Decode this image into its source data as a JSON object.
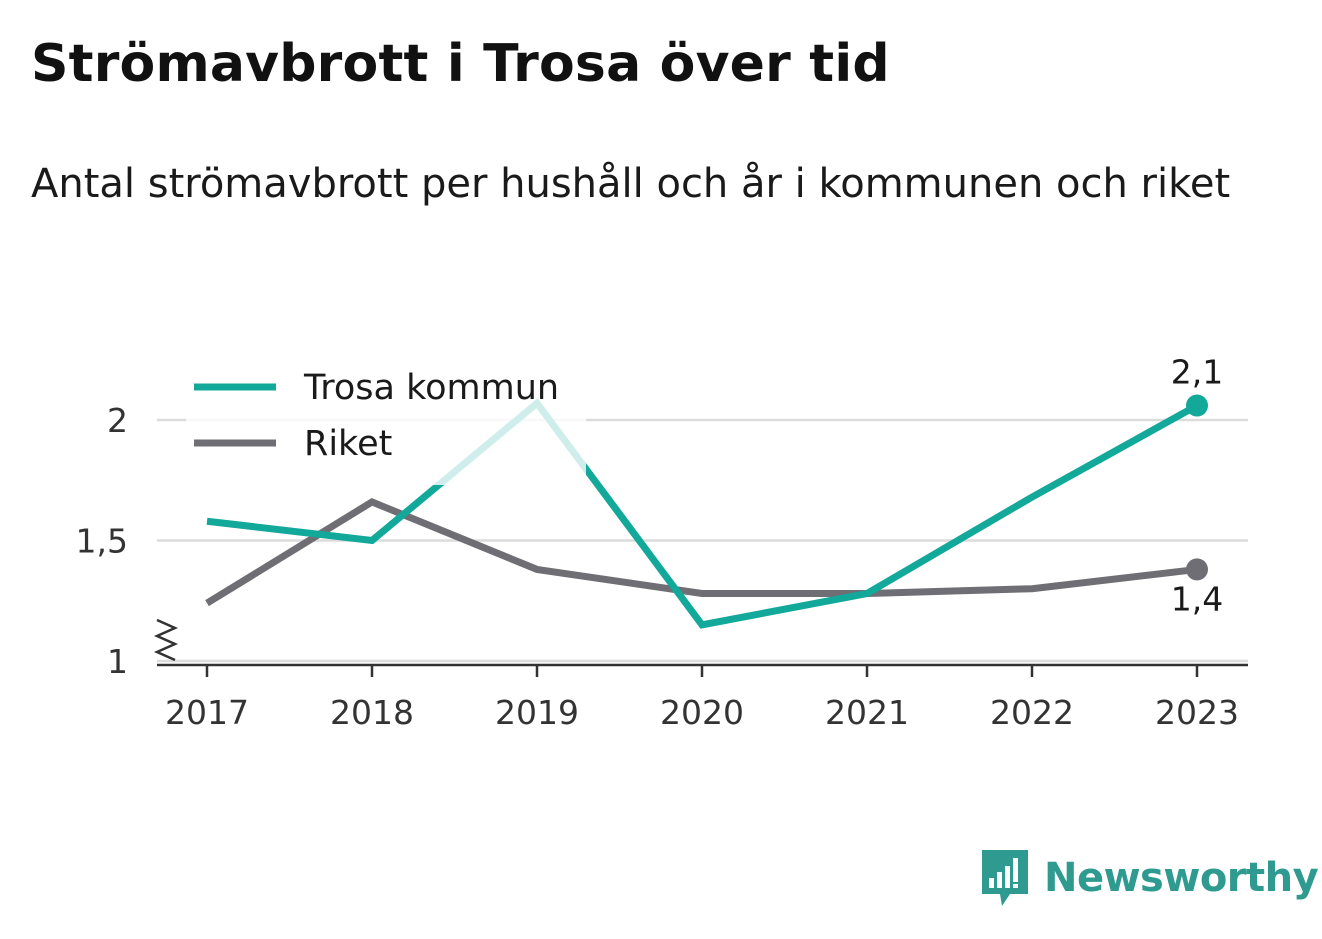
{
  "title": "Strömavbrott i Trosa över tid",
  "subtitle": "Antal strömavbrott per hushåll och år i kommunen och riket",
  "brand": {
    "name": "Newsworthy",
    "color": "#2f9a8f",
    "icon": "newsworthy-logo-icon"
  },
  "chart_data": {
    "type": "line",
    "x": [
      "2017",
      "2018",
      "2019",
      "2020",
      "2021",
      "2022",
      "2023"
    ],
    "ylim": [
      1,
      2.2
    ],
    "y_ticks": [
      1,
      1.5,
      2
    ],
    "y_tick_labels": [
      "1",
      "1,5",
      "2"
    ],
    "y_axis_break": true,
    "grid": true,
    "legend_position": "top-left",
    "series": [
      {
        "name": "Trosa kommun",
        "color": "#12a89a",
        "values": [
          1.58,
          1.5,
          2.07,
          1.15,
          1.28,
          1.68,
          2.06
        ],
        "end_label": "2,1",
        "end_label_position": "above"
      },
      {
        "name": "Riket",
        "color": "#6e6e74",
        "values": [
          1.24,
          1.66,
          1.38,
          1.28,
          1.28,
          1.3,
          1.38
        ],
        "end_label": "1,4",
        "end_label_position": "below"
      }
    ]
  }
}
